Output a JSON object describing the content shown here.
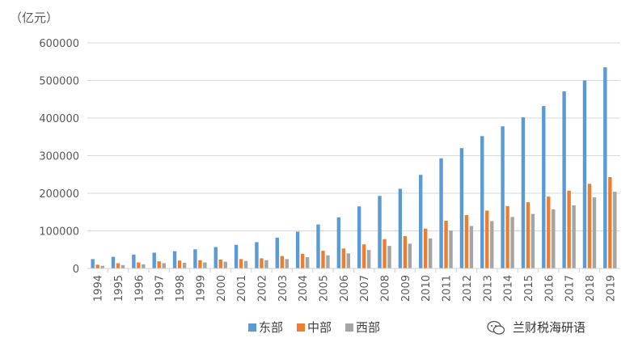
{
  "chart_data": {
    "type": "bar",
    "title": "",
    "xlabel": "",
    "ylabel": "",
    "unit_label": "（亿元）",
    "ylim": [
      0,
      600000
    ],
    "yticks": [
      0,
      100000,
      200000,
      300000,
      400000,
      500000,
      600000
    ],
    "grid": true,
    "legend_position": "bottom-center",
    "categories": [
      "1994",
      "1995",
      "1996",
      "1997",
      "1998",
      "1999",
      "2000",
      "2001",
      "2002",
      "2003",
      "2004",
      "2005",
      "2006",
      "2007",
      "2008",
      "2009",
      "2010",
      "2011",
      "2012",
      "2013",
      "2014",
      "2015",
      "2016",
      "2017",
      "2018",
      "2019"
    ],
    "series": [
      {
        "name": "东部",
        "color": "#5B9BD5",
        "values": [
          25000,
          31000,
          37000,
          42000,
          46000,
          51000,
          57000,
          63000,
          70000,
          82000,
          98000,
          117000,
          136000,
          165000,
          193000,
          212000,
          249000,
          293000,
          320000,
          352000,
          378000,
          402000,
          432000,
          471000,
          500000,
          535000
        ]
      },
      {
        "name": "中部",
        "color": "#ED7D31",
        "values": [
          10000,
          14000,
          16000,
          19000,
          21000,
          22000,
          24000,
          25000,
          27000,
          33000,
          39000,
          47000,
          53000,
          64000,
          78000,
          86000,
          106000,
          127000,
          142000,
          154000,
          166000,
          176000,
          191000,
          207000,
          225000,
          243000
        ]
      },
      {
        "name": "西部",
        "color": "#A5A5A5",
        "values": [
          7000,
          9000,
          11000,
          14000,
          15000,
          16000,
          18000,
          20000,
          22000,
          25000,
          30000,
          35000,
          40000,
          49000,
          60000,
          66000,
          80000,
          101000,
          113000,
          126000,
          137000,
          145000,
          157000,
          168000,
          189000,
          204000
        ]
      }
    ]
  },
  "watermark": {
    "text": "兰财税海研语",
    "icon": "wechat-icon"
  }
}
